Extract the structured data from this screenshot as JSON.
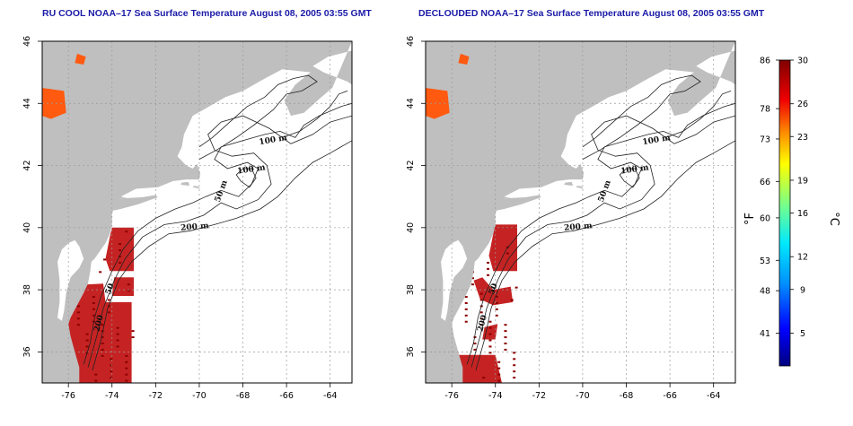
{
  "panels": [
    {
      "id": "left",
      "title": "RU COOL NOAA–17 Sea Surface Temperature August 08, 2005 03:55 GMT",
      "variant": "raw"
    },
    {
      "id": "right",
      "title": "DECLOUDED NOAA–17 Sea Surface Temperature August 08, 2005 03:55 GMT",
      "variant": "declouded"
    }
  ],
  "map_axes": {
    "lon_ticks": [
      "-76",
      "-74",
      "-72",
      "-70",
      "-68",
      "-66",
      "-64"
    ],
    "lat_ticks": [
      "36",
      "38",
      "40",
      "42",
      "44",
      "46"
    ],
    "lon_range": [
      -77.2,
      -63.0
    ],
    "lat_range": [
      35.0,
      46.0
    ]
  },
  "contour_labels": [
    "100 m",
    "100 m",
    "50 m",
    "200 m",
    "50",
    "200"
  ],
  "colorbar": {
    "unit_f": "°F",
    "unit_c": "°C",
    "f_ticks": [
      "86",
      "78",
      "73",
      "66",
      "60",
      "53",
      "48",
      "41"
    ],
    "c_ticks": [
      "30",
      "26",
      "23",
      "19",
      "16",
      "12",
      "9",
      "5"
    ],
    "c_range": [
      2,
      30
    ],
    "colors": [
      "#000080",
      "#0000ff",
      "#0080ff",
      "#00ffff",
      "#80ff80",
      "#ffff00",
      "#ff8000",
      "#ff0000",
      "#800000"
    ]
  },
  "colors": {
    "land": "#bfbfbf",
    "ocean": "#ffffff",
    "grid": "#999999",
    "title": "#1a1aa8",
    "sst_warm": "#c01010",
    "sst_dark": "#8a0000"
  }
}
